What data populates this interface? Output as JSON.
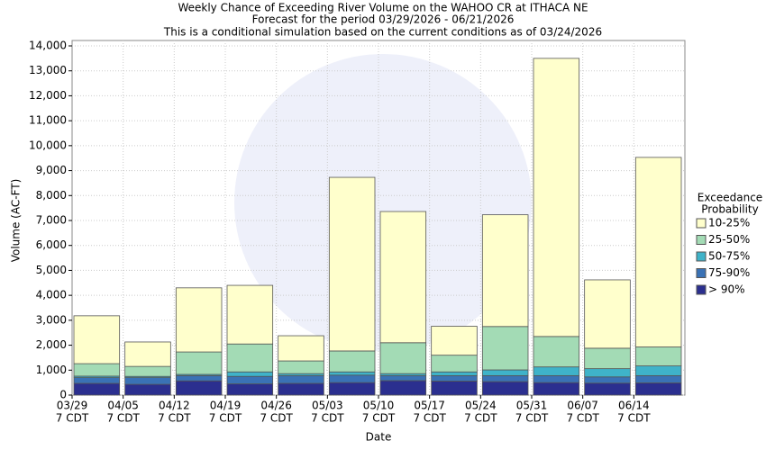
{
  "chart_data": {
    "type": "stacked_bar",
    "title": "Weekly Chance of Exceeding River Volume on the WAHOO CR at ITHACA NE",
    "subtitles": [
      "Forecast for the period 03/29/2026 - 06/21/2026",
      "This is a conditional simulation based on the current conditions as of 03/24/2026"
    ],
    "x_label": "Date",
    "y_label": "Volume (AC-FT)",
    "categories": [
      "03/29",
      "04/05",
      "04/12",
      "04/19",
      "04/26",
      "05/03",
      "05/10",
      "05/17",
      "05/24",
      "05/31",
      "06/07",
      "06/14"
    ],
    "category_sublabels": [
      "7 CDT",
      "7 CDT",
      "7 CDT",
      "7 CDT",
      "7 CDT",
      "7 CDT",
      "7 CDT",
      "7 CDT",
      "7 CDT",
      "7 CDT",
      "7 CDT",
      "7 CDT"
    ],
    "legend_title": [
      "Exceedance",
      "Probability"
    ],
    "series": [
      {
        "name": "> 90%",
        "color": "#2b2f8f",
        "values": [
          470,
          430,
          570,
          450,
          470,
          500,
          580,
          560,
          540,
          500,
          480,
          490
        ]
      },
      {
        "name": "75-90%",
        "color": "#3a72b5",
        "values": [
          230,
          270,
          210,
          300,
          310,
          300,
          200,
          220,
          240,
          280,
          250,
          290
        ]
      },
      {
        "name": "50-75%",
        "color": "#3fb3c9",
        "values": [
          60,
          50,
          50,
          180,
          80,
          130,
          80,
          150,
          230,
          350,
          330,
          390
        ]
      },
      {
        "name": "25-50%",
        "color": "#a3dbb5",
        "values": [
          500,
          400,
          900,
          1120,
          510,
          840,
          1240,
          670,
          1740,
          1220,
          820,
          760
        ]
      },
      {
        "name": "10-25%",
        "color": "#ffffcc",
        "values": [
          1920,
          980,
          2570,
          2350,
          1010,
          6960,
          5260,
          1160,
          4480,
          11150,
          2740,
          7600
        ]
      }
    ],
    "ylim": [
      0,
      14000
    ],
    "yticks": [
      0,
      {
        "value": 1000,
        "label": "1,000"
      },
      {
        "value": 2000,
        "label": "2,000"
      },
      {
        "value": 3000,
        "label": "3,000"
      },
      {
        "value": 4000,
        "label": "4,000"
      },
      {
        "value": 5000,
        "label": "5,000"
      },
      {
        "value": 6000,
        "label": "6,000"
      },
      {
        "value": 7000,
        "label": "7,000"
      },
      {
        "value": 8000,
        "label": "8,000"
      },
      {
        "value": 9000,
        "label": "9,000"
      },
      {
        "value": 10000,
        "label": "10,000"
      },
      {
        "value": 11000,
        "label": "11,000"
      },
      {
        "value": 12000,
        "label": "12,000"
      },
      {
        "value": 13000,
        "label": "13,000"
      },
      {
        "value": 14000,
        "label": "14,000"
      }
    ],
    "grid": true
  }
}
